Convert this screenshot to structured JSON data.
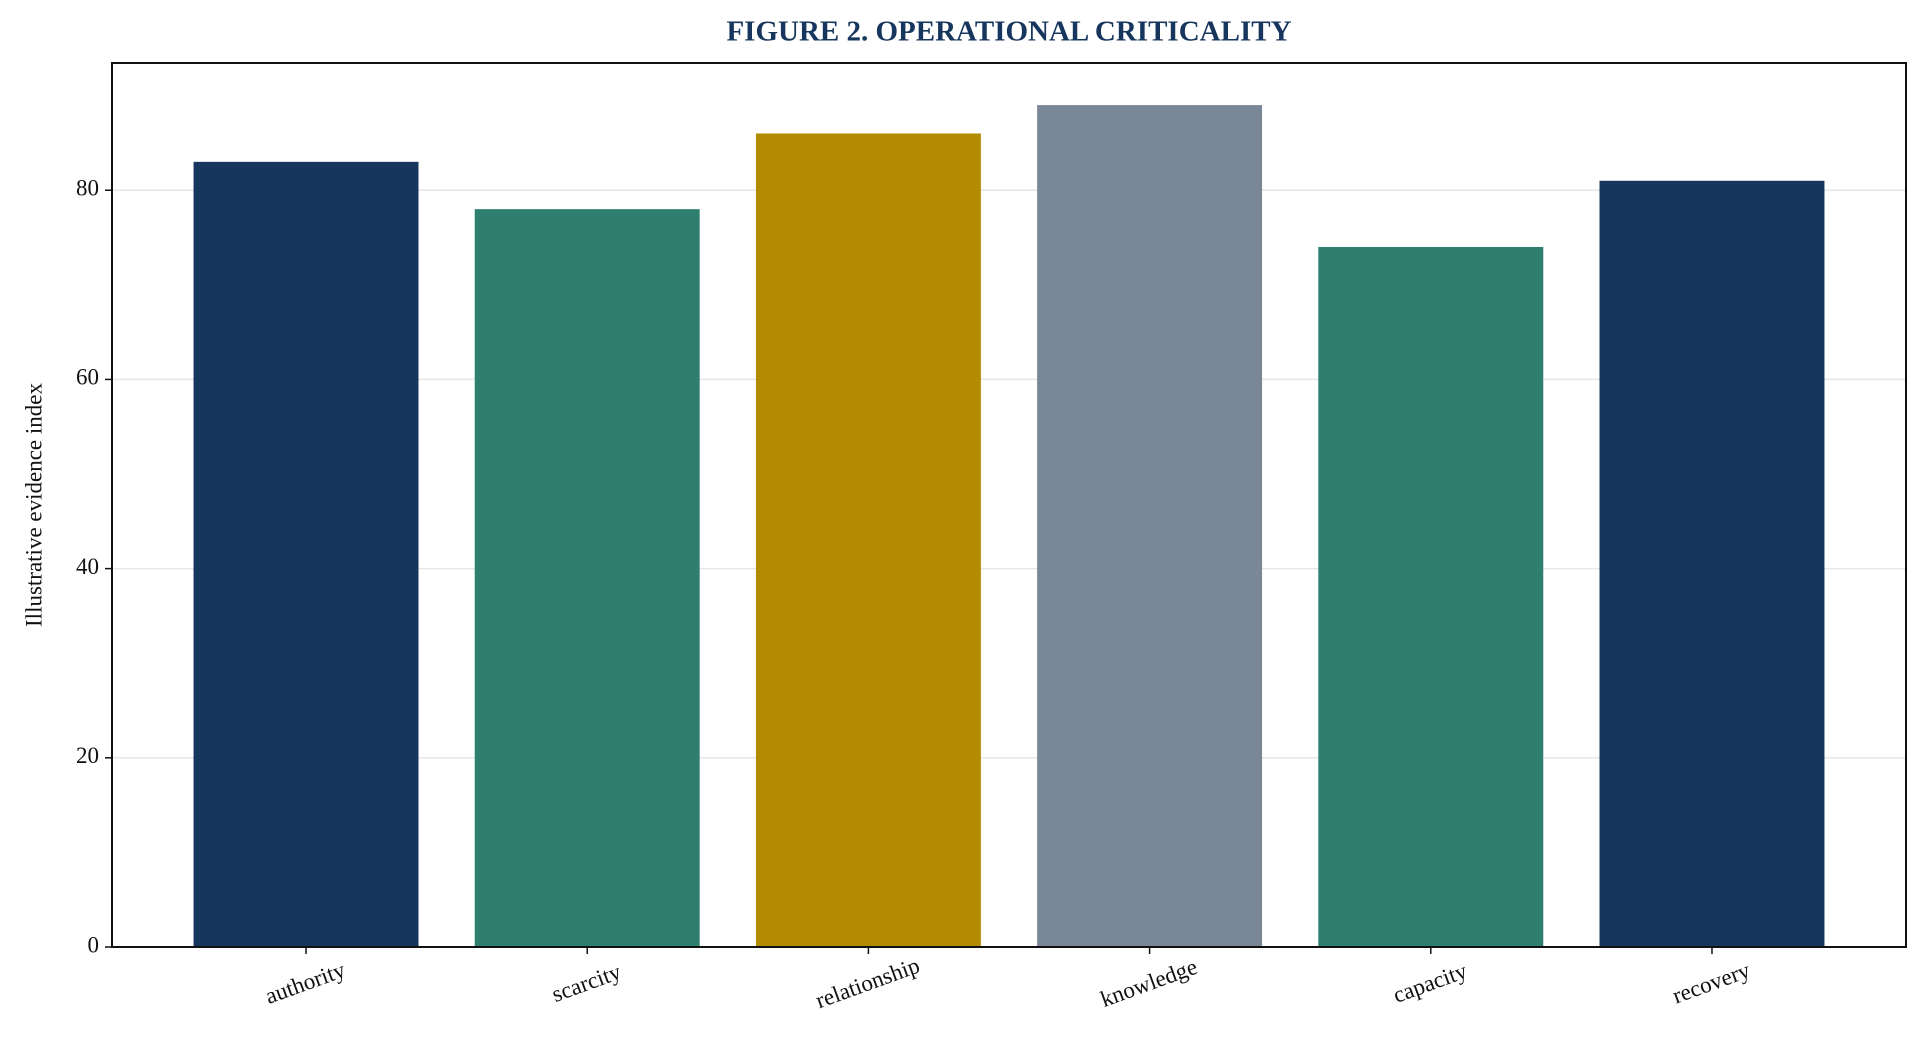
{
  "chart_data": {
    "type": "bar",
    "title": "FIGURE 2. OPERATIONAL CRITICALITY",
    "y_label": "Illustrative evidence index",
    "categories": [
      "authority",
      "scarcity",
      "relationship",
      "knowledge",
      "capacity",
      "recovery"
    ],
    "values": [
      83,
      78,
      86,
      89,
      74,
      81
    ],
    "colors": [
      "#17365d",
      "#2e7f6f",
      "#b38b00",
      "#7a8796",
      "#2e7f6f",
      "#17365d"
    ],
    "ylim": [
      0,
      93.45
    ],
    "yticks": [
      0,
      20,
      40,
      60,
      80
    ],
    "grid": true
  }
}
